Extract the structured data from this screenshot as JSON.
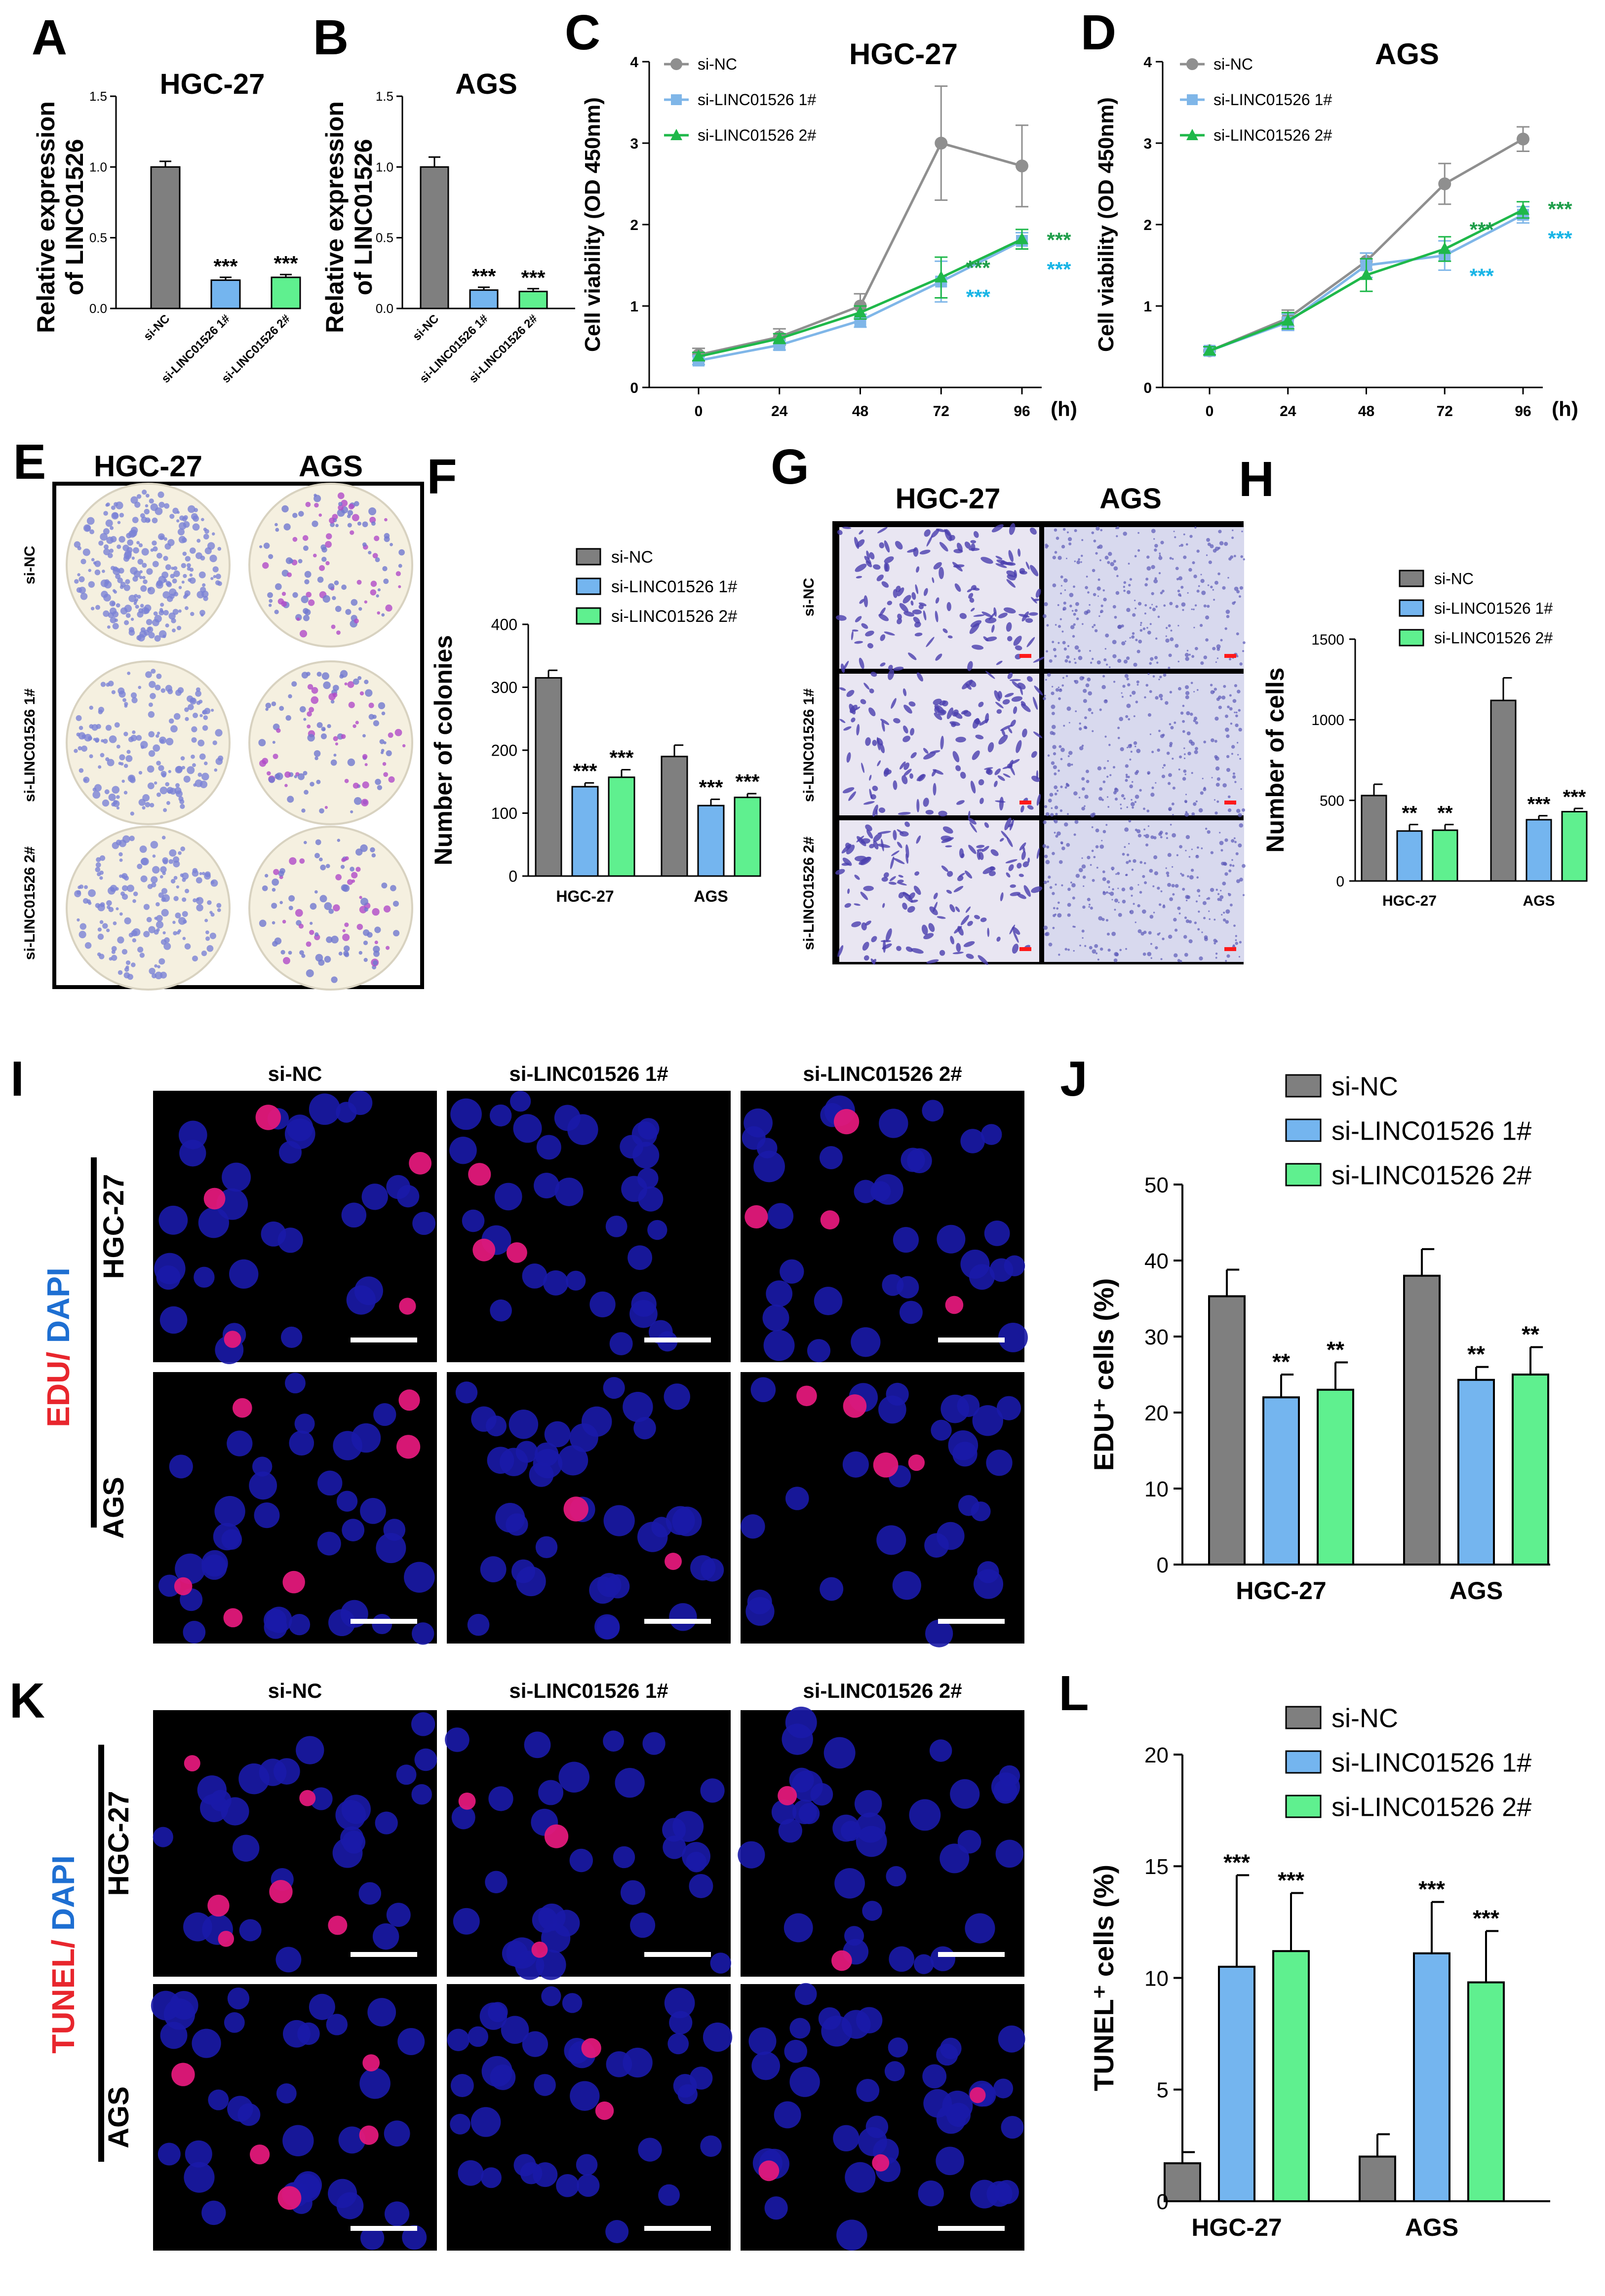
{
  "colors": {
    "si_nc": "#7f7f7f",
    "si_1": "#74b5ef",
    "si_2": "#5ff08f",
    "line_nc": "#8f8f8f",
    "line_1": "#7fb6e8",
    "line_2": "#1fb84a",
    "star_green": "#1e9e4a",
    "star_cyan": "#19b5e6",
    "red_label": "#e8262d",
    "blue_label": "#1e6fd2"
  },
  "legend": [
    "si-NC",
    "si-LINC01526 1#",
    "si-LINC01526 2#"
  ],
  "unit_h": "(h)",
  "chart_data": [
    {
      "id": "A",
      "type": "bar",
      "title": "HGC-27",
      "ylabel_lines": [
        "Relative expression",
        "of LINC01526"
      ],
      "categories": [
        "si-NC",
        "si-LINC01526 1#",
        "si-LINC01526 2#"
      ],
      "values": [
        1.0,
        0.2,
        0.22
      ],
      "errors": [
        0.04,
        0.02,
        0.02
      ],
      "sig": [
        "",
        "***",
        "***"
      ],
      "yticks": [
        "0.0",
        "0.5",
        "1.0",
        "1.5"
      ],
      "ylim": [
        0,
        1.5
      ]
    },
    {
      "id": "B",
      "type": "bar",
      "title": "AGS",
      "ylabel_lines": [
        "Relative expression",
        "of LINC01526"
      ],
      "categories": [
        "si-NC",
        "si-LINC01526 1#",
        "si-LINC01526 2#"
      ],
      "values": [
        1.0,
        0.13,
        0.12
      ],
      "errors": [
        0.07,
        0.02,
        0.02
      ],
      "sig": [
        "",
        "***",
        "***"
      ],
      "yticks": [
        "0.0",
        "0.5",
        "1.0",
        "1.5"
      ],
      "ylim": [
        0,
        1.5
      ]
    },
    {
      "id": "C",
      "type": "line",
      "title": "HGC-27",
      "ylabel": "Cell viability (OD 450nm)",
      "x": [
        0,
        24,
        48,
        72,
        96
      ],
      "xticks": [
        "0",
        "24",
        "48",
        "72",
        "96"
      ],
      "yticks": [
        "0",
        "1",
        "2",
        "3",
        "4"
      ],
      "ylim": [
        0,
        4
      ],
      "series": [
        {
          "name": "si-NC",
          "values": [
            0.4,
            0.62,
            1.0,
            3.0,
            2.72
          ],
          "errors": [
            0.08,
            0.1,
            0.15,
            0.7,
            0.5
          ]
        },
        {
          "name": "si-LINC01526 1#",
          "values": [
            0.33,
            0.52,
            0.82,
            1.3,
            1.8
          ],
          "errors": [
            0.05,
            0.06,
            0.08,
            0.25,
            0.1
          ]
        },
        {
          "name": "si-LINC01526 2#",
          "values": [
            0.38,
            0.6,
            0.92,
            1.35,
            1.82
          ],
          "errors": [
            0.05,
            0.06,
            0.08,
            0.25,
            0.12
          ]
        }
      ],
      "sig": [
        {
          "text": "***",
          "color_key": "star_green",
          "x": 72,
          "y": 1.48
        },
        {
          "text": "***",
          "color_key": "star_cyan",
          "x": 72,
          "y": 1.12
        },
        {
          "text": "***",
          "color_key": "star_green",
          "x": 96,
          "y": 1.82
        },
        {
          "text": "***",
          "color_key": "star_cyan",
          "x": 96,
          "y": 1.46
        }
      ]
    },
    {
      "id": "D",
      "type": "line",
      "title": "AGS",
      "ylabel": "Cell viability (OD 450nm)",
      "x": [
        0,
        24,
        48,
        72,
        96
      ],
      "xticks": [
        "0",
        "24",
        "48",
        "72",
        "96"
      ],
      "yticks": [
        "0",
        "1",
        "2",
        "3",
        "4"
      ],
      "ylim": [
        0,
        4
      ],
      "series": [
        {
          "name": "si-NC",
          "values": [
            0.45,
            0.85,
            1.55,
            2.5,
            3.05
          ],
          "errors": [
            0.05,
            0.1,
            0.1,
            0.25,
            0.15
          ]
        },
        {
          "name": "si-LINC01526 1#",
          "values": [
            0.45,
            0.8,
            1.5,
            1.62,
            2.12
          ],
          "errors": [
            0.05,
            0.1,
            0.15,
            0.18,
            0.1
          ]
        },
        {
          "name": "si-LINC01526 2#",
          "values": [
            0.45,
            0.82,
            1.38,
            1.7,
            2.18
          ],
          "errors": [
            0.05,
            0.1,
            0.2,
            0.15,
            0.1
          ]
        }
      ],
      "sig": [
        {
          "text": "***",
          "color_key": "star_green",
          "x": 72,
          "y": 1.95
        },
        {
          "text": "***",
          "color_key": "star_cyan",
          "x": 72,
          "y": 1.38
        },
        {
          "text": "***",
          "color_key": "star_green",
          "x": 96,
          "y": 2.2
        },
        {
          "text": "***",
          "color_key": "star_cyan",
          "x": 96,
          "y": 1.84
        }
      ]
    },
    {
      "id": "F",
      "type": "bar",
      "title": "",
      "ylabel": "Number of colonies",
      "categories": [
        "HGC-27",
        "AGS"
      ],
      "series": [
        {
          "name": "si-NC",
          "values": [
            315,
            190
          ],
          "errors": [
            12,
            18
          ],
          "sig": [
            "",
            ""
          ]
        },
        {
          "name": "si-LINC01526 1#",
          "values": [
            142,
            112
          ],
          "errors": [
            6,
            10
          ],
          "sig": [
            "***",
            "***"
          ]
        },
        {
          "name": "si-LINC01526 2#",
          "values": [
            157,
            125
          ],
          "errors": [
            12,
            6
          ],
          "sig": [
            "***",
            "***"
          ]
        }
      ],
      "yticks": [
        "0",
        "100",
        "200",
        "300",
        "400"
      ],
      "ylim": [
        0,
        400
      ]
    },
    {
      "id": "H",
      "type": "bar",
      "title": "",
      "ylabel": "Number of cells",
      "categories": [
        "HGC-27",
        "AGS"
      ],
      "series": [
        {
          "name": "si-NC",
          "values": [
            530,
            1120
          ],
          "errors": [
            70,
            140
          ],
          "sig": [
            "",
            ""
          ]
        },
        {
          "name": "si-LINC01526 1#",
          "values": [
            310,
            380
          ],
          "errors": [
            40,
            25
          ],
          "sig": [
            "**",
            "***"
          ]
        },
        {
          "name": "si-LINC01526 2#",
          "values": [
            315,
            430
          ],
          "errors": [
            35,
            20
          ],
          "sig": [
            "**",
            "***"
          ]
        }
      ],
      "yticks": [
        "0",
        "500",
        "1000",
        "1500"
      ],
      "ylim": [
        0,
        1500
      ]
    },
    {
      "id": "J",
      "type": "bar",
      "title": "",
      "ylabel": "EDU⁺ cells (%)",
      "categories": [
        "HGC-27",
        "AGS"
      ],
      "series": [
        {
          "name": "si-NC",
          "values": [
            35.3,
            38
          ],
          "errors": [
            3.5,
            3.5
          ],
          "sig": [
            "",
            ""
          ]
        },
        {
          "name": "si-LINC01526 1#",
          "values": [
            22,
            24.3
          ],
          "errors": [
            3,
            1.7
          ],
          "sig": [
            "**",
            "**"
          ]
        },
        {
          "name": "si-LINC01526 2#",
          "values": [
            23,
            25
          ],
          "errors": [
            3.6,
            3.6
          ],
          "sig": [
            "**",
            "**"
          ]
        }
      ],
      "yticks": [
        "0",
        "10",
        "20",
        "30",
        "40",
        "50"
      ],
      "ylim": [
        0,
        50
      ]
    },
    {
      "id": "L",
      "type": "bar",
      "title": "",
      "ylabel": "TUNEL⁺ cells (%)",
      "categories": [
        "HGC-27",
        "AGS"
      ],
      "series": [
        {
          "name": "si-NC",
          "values": [
            1.7,
            2.0
          ],
          "errors": [
            0.5,
            1.0
          ],
          "sig": [
            "",
            ""
          ]
        },
        {
          "name": "si-LINC01526 1#",
          "values": [
            10.5,
            11.1
          ],
          "errors": [
            4.1,
            2.3
          ],
          "sig": [
            "***",
            "***"
          ]
        },
        {
          "name": "si-LINC01526 2#",
          "values": [
            11.2,
            9.8
          ],
          "errors": [
            2.6,
            2.3
          ],
          "sig": [
            "***",
            "***"
          ]
        }
      ],
      "yticks": [
        "0",
        "5",
        "10",
        "15",
        "20"
      ],
      "ylim": [
        0,
        20
      ]
    }
  ],
  "panel_E": {
    "letter": "E",
    "cols": [
      "HGC-27",
      "AGS"
    ],
    "rows": [
      "si-NC",
      "si-LINC01526 1#",
      "si-LINC01526 2#"
    ]
  },
  "panel_G": {
    "letter": "G",
    "cols": [
      "HGC-27",
      "AGS"
    ],
    "rows": [
      "si-NC",
      "si-LINC01526 1#",
      "si-LINC01526 2#"
    ]
  },
  "panel_I": {
    "letter": "I",
    "cols": [
      "si-NC",
      "si-LINC01526 1#",
      "si-LINC01526 2#"
    ],
    "rows": [
      "HGC-27",
      "AGS"
    ],
    "stain_red": "EDU/",
    "stain_blue": " DAPI"
  },
  "panel_K": {
    "letter": "K",
    "cols": [
      "si-NC",
      "si-LINC01526 1#",
      "si-LINC01526 2#"
    ],
    "rows": [
      "HGC-27",
      "AGS"
    ],
    "stain_red": "TUNEL/",
    "stain_blue": " DAPI"
  }
}
